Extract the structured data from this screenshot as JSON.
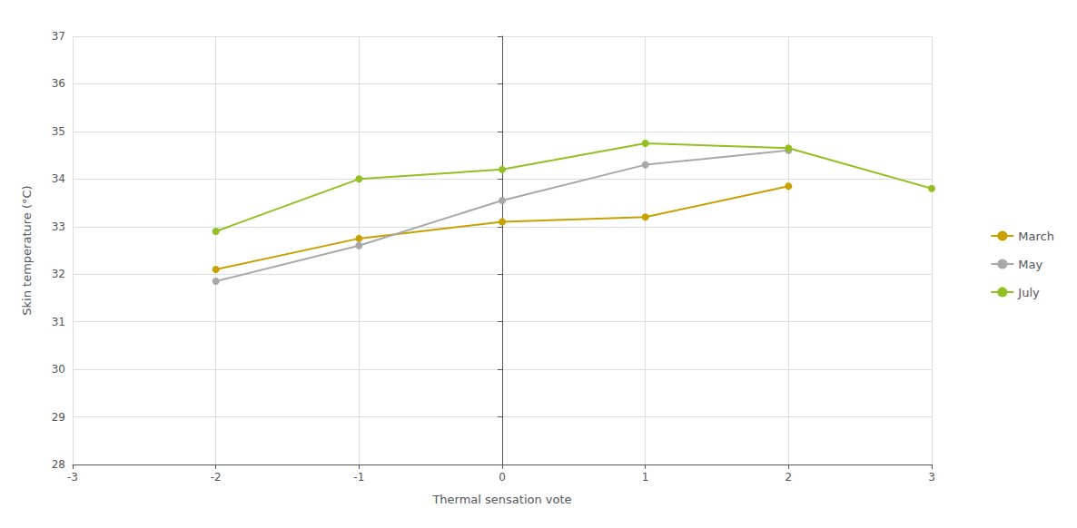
{
  "chart_data": {
    "type": "line",
    "xlabel": "Thermal sensation vote",
    "ylabel": "Skin temperature (°C)",
    "x": [
      -2,
      -1,
      0,
      1,
      2,
      3
    ],
    "series": [
      {
        "name": "March",
        "color": "#C8A000",
        "values": [
          32.1,
          32.75,
          33.1,
          33.2,
          33.85,
          null
        ]
      },
      {
        "name": "May",
        "color": "#A8A8A8",
        "values": [
          31.85,
          32.6,
          33.55,
          34.3,
          34.6,
          null
        ]
      },
      {
        "name": "July",
        "color": "#92C020",
        "values": [
          32.9,
          34.0,
          34.2,
          34.75,
          34.65,
          33.8
        ]
      }
    ],
    "xlim": [
      -3,
      3
    ],
    "ylim": [
      28,
      37
    ],
    "xticks": [
      -3,
      -2,
      -1,
      0,
      1,
      2,
      3
    ],
    "yticks": [
      28,
      29,
      30,
      31,
      32,
      33,
      34,
      35,
      36,
      37
    ],
    "grid": true,
    "legend": "right",
    "marker": "circle"
  }
}
